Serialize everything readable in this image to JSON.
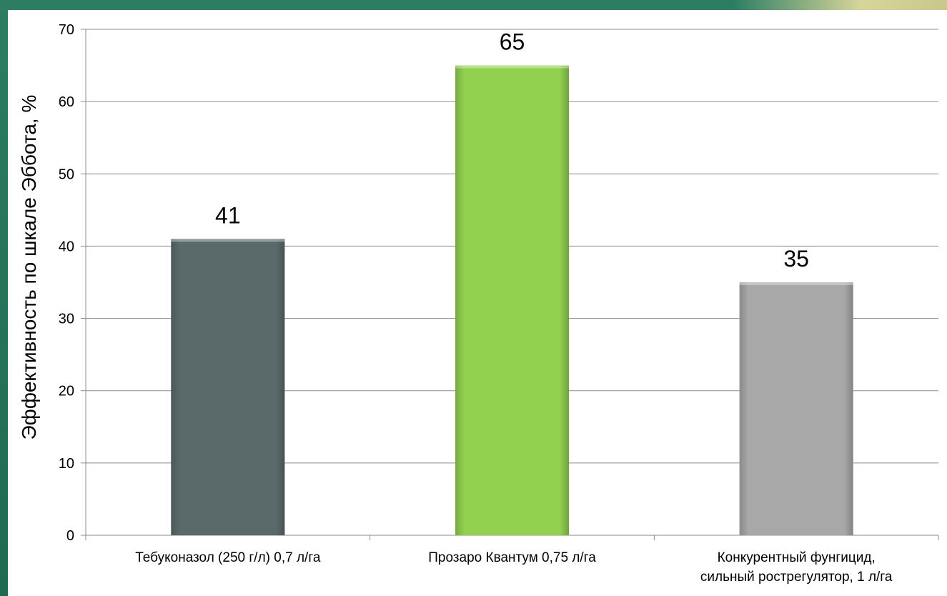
{
  "chart_data": {
    "type": "bar",
    "categories": [
      [
        "Тебуконазол (250 г/л) 0,7 л/га"
      ],
      [
        "Прозаро Квантум 0,75 л/га"
      ],
      [
        "Конкурентный фунгицид,",
        "сильный рострегулятор, 1 л/га"
      ]
    ],
    "values": [
      41,
      65,
      35
    ],
    "colors": [
      "#5a6a6a",
      "#92d050",
      "#a8a8a8"
    ],
    "ylabel": "Эффективность по шкале Эббота, %",
    "xlabel": "",
    "title": "",
    "ylim": [
      0,
      70
    ],
    "yticks": [
      0,
      10,
      20,
      30,
      40,
      50,
      60,
      70
    ],
    "grid": true,
    "legend": "none"
  },
  "colors": {
    "frame": "#1f6a52",
    "gridline": "#8c8c8c",
    "axis": "#8c8c8c"
  }
}
